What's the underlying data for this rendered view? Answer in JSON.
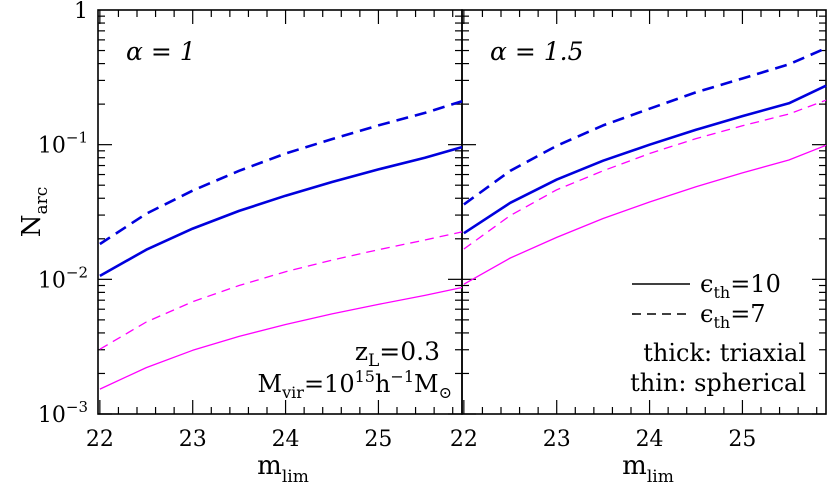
{
  "chart_data": [
    {
      "type": "line",
      "panel_label": "α = 1",
      "x_ticks": [
        "22",
        "23",
        "24",
        "25"
      ],
      "y_ticks": [
        {
          "value": 0.001,
          "base": "10",
          "exp": "−3"
        },
        {
          "value": 0.01,
          "base": "10",
          "exp": "−2"
        },
        {
          "value": 0.1,
          "base": "10",
          "exp": "−1"
        },
        {
          "value": 1,
          "label": "1"
        }
      ],
      "xlabel": {
        "base": "m",
        "sub": "lim"
      },
      "ylabel": {
        "base": "N",
        "sub": "arc"
      },
      "xlim": [
        21.98,
        25.9
      ],
      "ylim": [
        0.001,
        1
      ],
      "yscale": "log",
      "x": [
        22,
        22.5,
        23,
        23.5,
        24,
        24.5,
        25,
        25.5,
        25.9
      ],
      "series": [
        {
          "style": "solid",
          "weight": "thick",
          "color": "#0000dd",
          "values": [
            0.0106,
            0.0166,
            0.0238,
            0.0322,
            0.0418,
            0.0528,
            0.0655,
            0.08,
            0.096
          ]
        },
        {
          "style": "dashed",
          "weight": "thick",
          "color": "#0000dd",
          "values": [
            0.0183,
            0.0307,
            0.0456,
            0.064,
            0.086,
            0.11,
            0.139,
            0.172,
            0.21
          ]
        },
        {
          "style": "solid",
          "weight": "thin",
          "color": "#ff00ff",
          "values": [
            0.00153,
            0.00221,
            0.00297,
            0.00377,
            0.00462,
            0.00554,
            0.00651,
            0.0076,
            0.0087
          ]
        },
        {
          "style": "dashed",
          "weight": "thin",
          "color": "#ff00ff",
          "values": [
            0.00303,
            0.00482,
            0.00682,
            0.009,
            0.0114,
            0.0139,
            0.0166,
            0.0196,
            0.0225
          ]
        }
      ],
      "annotation_redshift": {
        "text": "z",
        "sub": "L",
        "value": "=0.3"
      },
      "annotation_mass": {
        "base": "M",
        "sub": "vir",
        "eq": "=10",
        "exp15": "15",
        "h": "h",
        "expm1": "−1",
        "m2": "M",
        "odot": "⊙"
      }
    },
    {
      "type": "line",
      "panel_label": "α = 1.5",
      "x_ticks": [
        "22",
        "23",
        "24",
        "25"
      ],
      "xlabel": {
        "base": "m",
        "sub": "lim"
      },
      "xlim": [
        21.98,
        25.9
      ],
      "ylim": [
        0.001,
        1
      ],
      "yscale": "log",
      "x": [
        22,
        22.5,
        23,
        23.5,
        24,
        24.5,
        25,
        25.5,
        25.9
      ],
      "series": [
        {
          "style": "solid",
          "weight": "thick",
          "color": "#0000dd",
          "values": [
            0.022,
            0.037,
            0.055,
            0.076,
            0.1,
            0.129,
            0.163,
            0.203,
            0.274
          ]
        },
        {
          "style": "dashed",
          "weight": "thick",
          "color": "#0000dd",
          "values": [
            0.036,
            0.064,
            0.098,
            0.139,
            0.185,
            0.245,
            0.31,
            0.395,
            0.52
          ]
        },
        {
          "style": "solid",
          "weight": "thin",
          "color": "#ff00ff",
          "values": [
            0.0092,
            0.0144,
            0.0205,
            0.0283,
            0.0375,
            0.0487,
            0.0617,
            0.077,
            0.099
          ]
        },
        {
          "style": "dashed",
          "weight": "thin",
          "color": "#ff00ff",
          "values": [
            0.0168,
            0.0298,
            0.0462,
            0.064,
            0.086,
            0.111,
            0.138,
            0.169,
            0.214
          ]
        }
      ],
      "legend": [
        {
          "style": "solid",
          "symbol": "ϵ",
          "sub": "th",
          "value": "=10"
        },
        {
          "style": "dashed",
          "symbol": "ϵ",
          "sub": "th",
          "value": "=7"
        }
      ],
      "color_key": {
        "thick": "thick: triaxial",
        "thin": "thin: spherical",
        "thick_color": "#0000dd",
        "thin_color": "#ff00ff"
      }
    }
  ]
}
